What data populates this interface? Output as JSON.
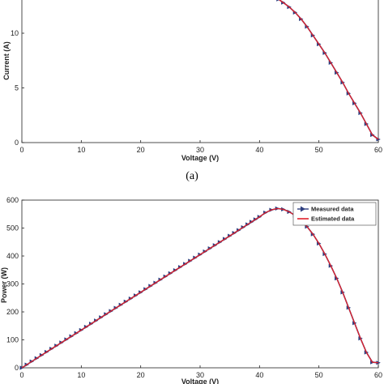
{
  "chart_data": [
    {
      "type": "line",
      "subfigure_label": "(a)",
      "xlabel": "Voltage (V)",
      "ylabel": "Current (A)",
      "xlim": [
        0,
        60
      ],
      "ylim_visible": [
        0,
        13.1
      ],
      "xticks": [
        0,
        10,
        20,
        30,
        40,
        50,
        60
      ],
      "yticks": [
        0,
        5,
        10
      ],
      "grid": false,
      "series": [
        {
          "name": "Measured data",
          "marker": "triangle-right",
          "color": "#2e3f7f",
          "x": [
            43.2,
            44,
            45,
            46,
            47,
            48,
            49,
            50,
            51,
            52,
            53,
            54,
            55,
            56,
            57,
            58,
            59,
            60
          ],
          "y": [
            13.1,
            12.8,
            12.4,
            11.9,
            11.3,
            10.6,
            9.8,
            9.0,
            8.2,
            7.3,
            6.4,
            5.5,
            4.5,
            3.6,
            2.7,
            1.7,
            0.7,
            0.3
          ]
        },
        {
          "name": "Estimated data",
          "color": "#e0202a",
          "x": [
            43.2,
            44,
            45,
            46,
            47,
            48,
            49,
            50,
            51,
            52,
            53,
            54,
            55,
            56,
            57,
            58,
            59,
            60
          ],
          "y": [
            13.1,
            12.8,
            12.4,
            11.9,
            11.3,
            10.6,
            9.8,
            9.0,
            8.2,
            7.3,
            6.4,
            5.5,
            4.5,
            3.6,
            2.7,
            1.7,
            0.7,
            0.3
          ]
        }
      ]
    },
    {
      "type": "line",
      "xlabel": "Voltage (V)",
      "ylabel": "Power (W)",
      "xlim": [
        0,
        60
      ],
      "ylim": [
        0,
        600
      ],
      "xticks": [
        0,
        10,
        20,
        30,
        40,
        50,
        60
      ],
      "yticks": [
        0,
        100,
        200,
        300,
        400,
        500,
        600
      ],
      "grid": false,
      "legend": "top-right",
      "series": [
        {
          "name": "Measured data",
          "marker": "triangle-right",
          "color": "#2e3f7f",
          "x": [
            0,
            5,
            10,
            15,
            20,
            25,
            30,
            35,
            38,
            40,
            41,
            42,
            43,
            44,
            45,
            46,
            47,
            48,
            49,
            50,
            51,
            52,
            53,
            54,
            55,
            56,
            57,
            58,
            59,
            60
          ],
          "y": [
            0,
            68,
            135,
            203,
            270,
            338,
            405,
            472,
            513,
            540,
            555,
            565,
            570,
            567,
            558,
            545,
            528,
            505,
            478,
            445,
            407,
            365,
            320,
            270,
            215,
            160,
            105,
            55,
            20,
            18
          ]
        },
        {
          "name": "Estimated data",
          "color": "#e0202a",
          "x": [
            0,
            5,
            10,
            15,
            20,
            25,
            30,
            35,
            38,
            40,
            41,
            42,
            43,
            44,
            45,
            46,
            47,
            48,
            49,
            50,
            51,
            52,
            53,
            54,
            55,
            56,
            57,
            58,
            59,
            60
          ],
          "y": [
            0,
            68,
            135,
            203,
            270,
            338,
            405,
            472,
            513,
            540,
            555,
            565,
            570,
            567,
            558,
            545,
            528,
            505,
            478,
            445,
            407,
            365,
            320,
            270,
            215,
            160,
            105,
            55,
            20,
            18
          ]
        }
      ]
    }
  ]
}
